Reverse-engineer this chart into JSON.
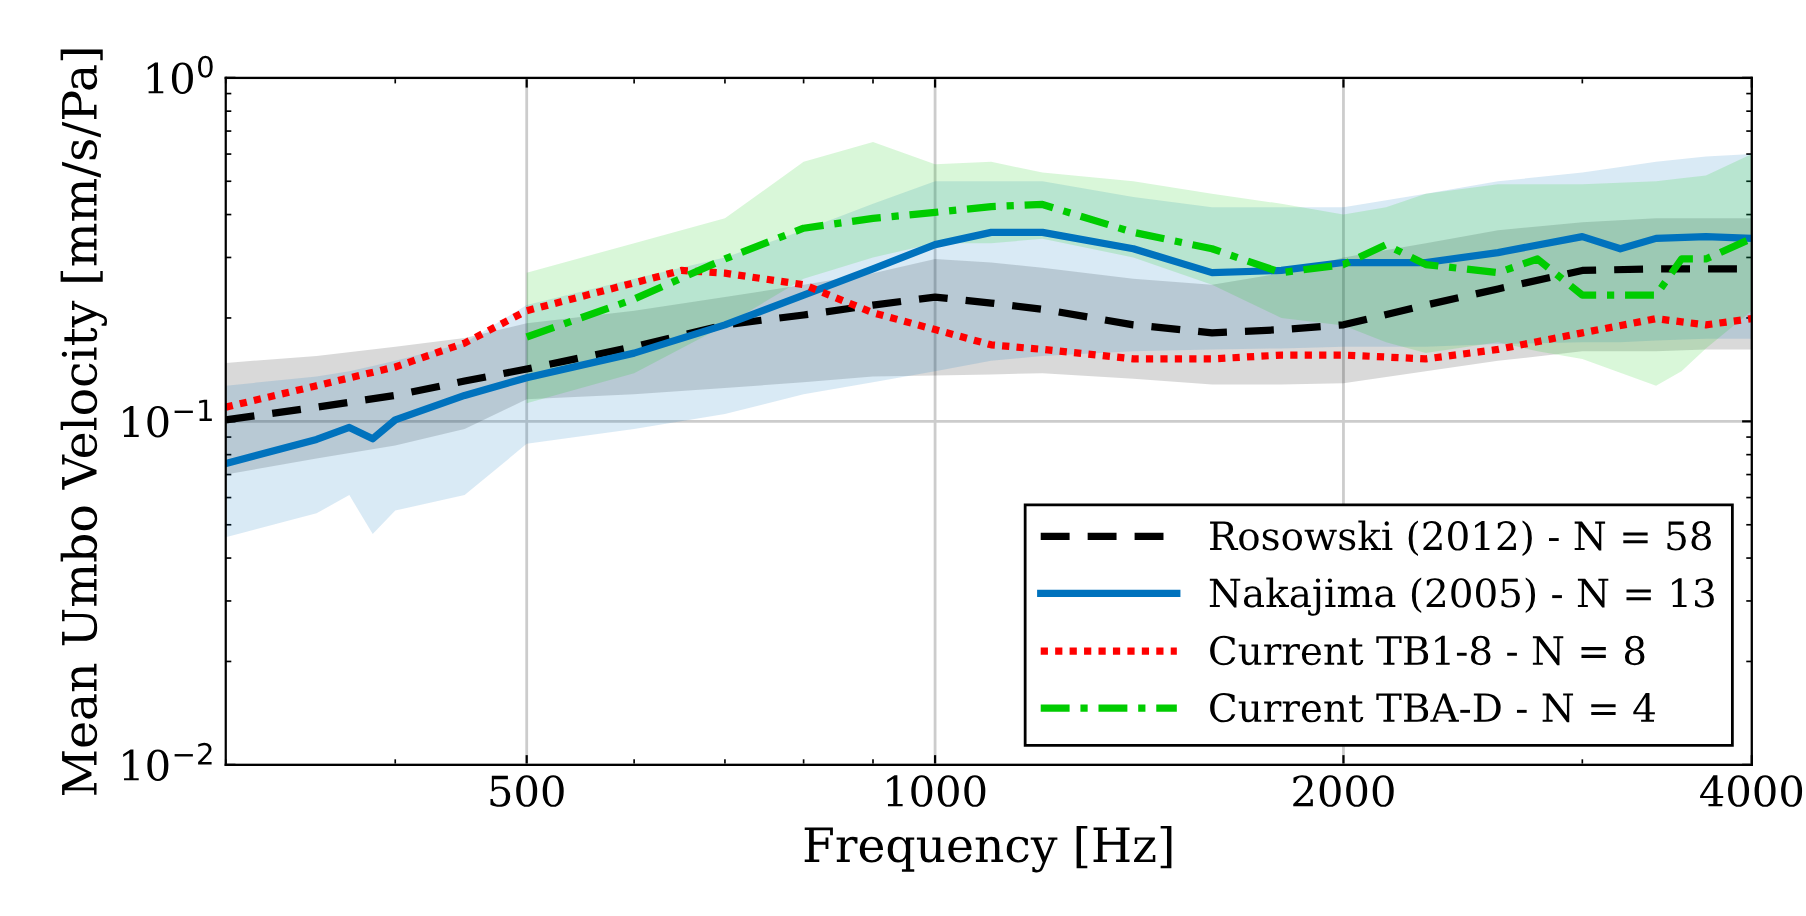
{
  "chart_data": {
    "type": "line",
    "xlabel": "Frequency [Hz]",
    "ylabel": "Mean Umbo Velocity [mm/s/Pa]",
    "log": "xy",
    "grid": true,
    "legend": "bottom right",
    "xlim": [
      300,
      4000
    ],
    "xticks": [
      500,
      1000,
      2000,
      4000
    ],
    "ylim": [
      0.01,
      1
    ],
    "yticks": [
      {
        "value": 0.01,
        "label": "10$^{−2}$"
      },
      {
        "value": 0.1,
        "label": "10$^{−1}$"
      },
      {
        "value": 1,
        "label": "10$^{0}$"
      }
    ],
    "series": [
      {
        "name": "Rosowski (2012) - N = 58",
        "color": "#000000",
        "line_style": "dashed",
        "x": [
          300,
          350,
          400,
          450,
          500,
          600,
          700,
          800,
          900,
          1000,
          1100,
          1200,
          1400,
          1600,
          1800,
          2000,
          2300,
          2600,
          3000,
          3400,
          3700,
          4000
        ],
        "values": [
          0.101,
          0.11,
          0.119,
          0.131,
          0.142,
          0.165,
          0.191,
          0.204,
          0.218,
          0.23,
          0.221,
          0.212,
          0.191,
          0.181,
          0.185,
          0.191,
          0.218,
          0.243,
          0.275,
          0.278,
          0.278,
          0.278
        ],
        "upper": [
          0.148,
          0.155,
          0.165,
          0.175,
          0.193,
          0.21,
          0.23,
          0.25,
          0.27,
          0.297,
          0.29,
          0.28,
          0.26,
          0.25,
          0.27,
          0.3,
          0.33,
          0.36,
          0.38,
          0.39,
          0.39,
          0.39
        ],
        "lower": [
          0.07,
          0.078,
          0.085,
          0.095,
          0.116,
          0.12,
          0.125,
          0.13,
          0.135,
          0.136,
          0.137,
          0.138,
          0.133,
          0.128,
          0.128,
          0.129,
          0.14,
          0.15,
          0.16,
          0.16,
          0.162,
          0.162
        ]
      },
      {
        "name": "Nakajima (2005) - N = 13",
        "color": "#0072bd",
        "line_style": "solid",
        "x": [
          300,
          350,
          370,
          385,
          400,
          450,
          500,
          600,
          700,
          800,
          900,
          1000,
          1100,
          1200,
          1400,
          1600,
          1800,
          2000,
          2300,
          2600,
          3000,
          3200,
          3400,
          3700,
          4000
        ],
        "values": [
          0.0754,
          0.0886,
          0.096,
          0.089,
          0.101,
          0.119,
          0.134,
          0.158,
          0.191,
          0.233,
          0.278,
          0.327,
          0.355,
          0.355,
          0.318,
          0.271,
          0.275,
          0.29,
          0.29,
          0.31,
          0.345,
          0.318,
          0.341,
          0.345,
          0.341
        ],
        "upper": [
          0.127,
          0.135,
          0.14,
          0.145,
          0.15,
          0.169,
          0.218,
          0.26,
          0.3,
          0.36,
          0.43,
          0.5,
          0.5,
          0.5,
          0.45,
          0.42,
          0.42,
          0.42,
          0.46,
          0.5,
          0.53,
          0.55,
          0.57,
          0.59,
          0.6
        ],
        "lower": [
          0.046,
          0.054,
          0.061,
          0.047,
          0.055,
          0.061,
          0.086,
          0.095,
          0.105,
          0.12,
          0.13,
          0.14,
          0.15,
          0.155,
          0.16,
          0.162,
          0.163,
          0.165,
          0.165,
          0.168,
          0.17,
          0.17,
          0.172,
          0.174,
          0.174
        ]
      },
      {
        "name": "Current TB1-8 - N = 8",
        "color": "#ff0000",
        "line_style": "dotted",
        "x": [
          300,
          350,
          400,
          450,
          500,
          600,
          650,
          700,
          800,
          900,
          1000,
          1100,
          1200,
          1400,
          1600,
          1800,
          2000,
          2300,
          2600,
          3000,
          3400,
          3700,
          4000
        ],
        "values": [
          0.11,
          0.127,
          0.144,
          0.169,
          0.21,
          0.253,
          0.275,
          0.27,
          0.25,
          0.207,
          0.185,
          0.167,
          0.162,
          0.152,
          0.152,
          0.156,
          0.156,
          0.152,
          0.162,
          0.181,
          0.199,
          0.191,
          0.199
        ]
      },
      {
        "name": "Current TBA-D - N = 4",
        "color": "#00cc00",
        "line_style": "dashdot",
        "x": [
          500,
          600,
          700,
          800,
          900,
          1000,
          1100,
          1200,
          1400,
          1600,
          1800,
          2000,
          2150,
          2300,
          2600,
          2780,
          3000,
          3400,
          3550,
          3700,
          4000
        ],
        "values": [
          0.176,
          0.227,
          0.297,
          0.365,
          0.39,
          0.406,
          0.422,
          0.428,
          0.355,
          0.318,
          0.271,
          0.286,
          0.327,
          0.286,
          0.271,
          0.297,
          0.233,
          0.233,
          0.297,
          0.297,
          0.341
        ],
        "upper": [
          0.271,
          0.33,
          0.39,
          0.57,
          0.65,
          0.56,
          0.57,
          0.53,
          0.5,
          0.46,
          0.43,
          0.4,
          0.42,
          0.46,
          0.49,
          0.49,
          0.49,
          0.5,
          0.51,
          0.52,
          0.6
        ],
        "lower": [
          0.113,
          0.138,
          0.19,
          0.26,
          0.3,
          0.33,
          0.33,
          0.34,
          0.3,
          0.25,
          0.2,
          0.19,
          0.17,
          0.158,
          0.17,
          0.16,
          0.152,
          0.127,
          0.14,
          0.163,
          0.21
        ]
      }
    ]
  }
}
